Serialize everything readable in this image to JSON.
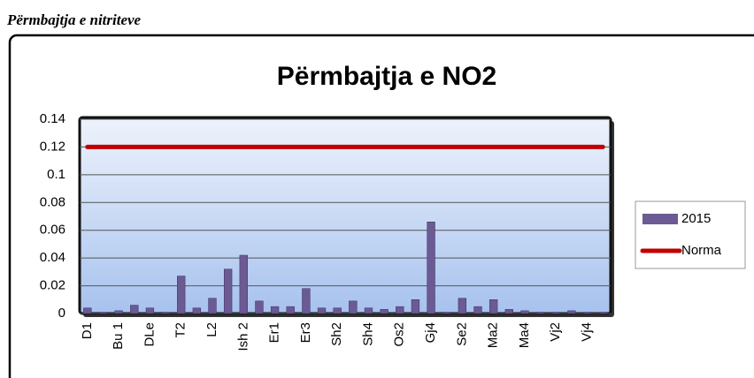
{
  "heading": "Përmbajtja e nitriteve",
  "chart_data": {
    "type": "bar",
    "title": "Përmbajtja e NO2",
    "categories": [
      "D1",
      null,
      "Bu 1",
      null,
      "DLe",
      null,
      "T2",
      null,
      "L2",
      null,
      "Ish 2",
      null,
      "Er1",
      null,
      "Er3",
      null,
      "Sh2",
      null,
      "Sh4",
      null,
      "Os2",
      null,
      "Gj4",
      null,
      "Se2",
      null,
      "Ma2",
      null,
      "Ma4",
      null,
      "Vj2",
      null,
      "Vj4",
      null
    ],
    "series": [
      {
        "name": "2015",
        "type": "bar",
        "color": "#6b5a93",
        "values": [
          0.004,
          0.001,
          0.002,
          0.006,
          0.004,
          0.001,
          0.027,
          0.004,
          0.011,
          0.032,
          0.042,
          0.009,
          0.005,
          0.005,
          0.018,
          0.004,
          0.004,
          0.009,
          0.004,
          0.003,
          0.005,
          0.01,
          0.066,
          0.001,
          0.011,
          0.005,
          0.01,
          0.003,
          0.002,
          0.001,
          0.001,
          0.002,
          0.001,
          0.001
        ]
      },
      {
        "name": "Norma",
        "type": "line",
        "color": "#c00000",
        "values": [
          0.12,
          0.12,
          0.12,
          0.12,
          0.12,
          0.12,
          0.12,
          0.12,
          0.12,
          0.12,
          0.12,
          0.12,
          0.12,
          0.12,
          0.12,
          0.12,
          0.12,
          0.12,
          0.12,
          0.12,
          0.12,
          0.12,
          0.12,
          0.12,
          0.12,
          0.12,
          0.12,
          0.12,
          0.12,
          0.12,
          0.12,
          0.12,
          0.12,
          0.12
        ]
      }
    ],
    "ylim": [
      0,
      0.14
    ],
    "yticks": [
      0,
      0.02,
      0.04,
      0.06,
      0.08,
      0.1,
      0.12,
      0.14
    ],
    "grid": true,
    "legend": "right"
  }
}
